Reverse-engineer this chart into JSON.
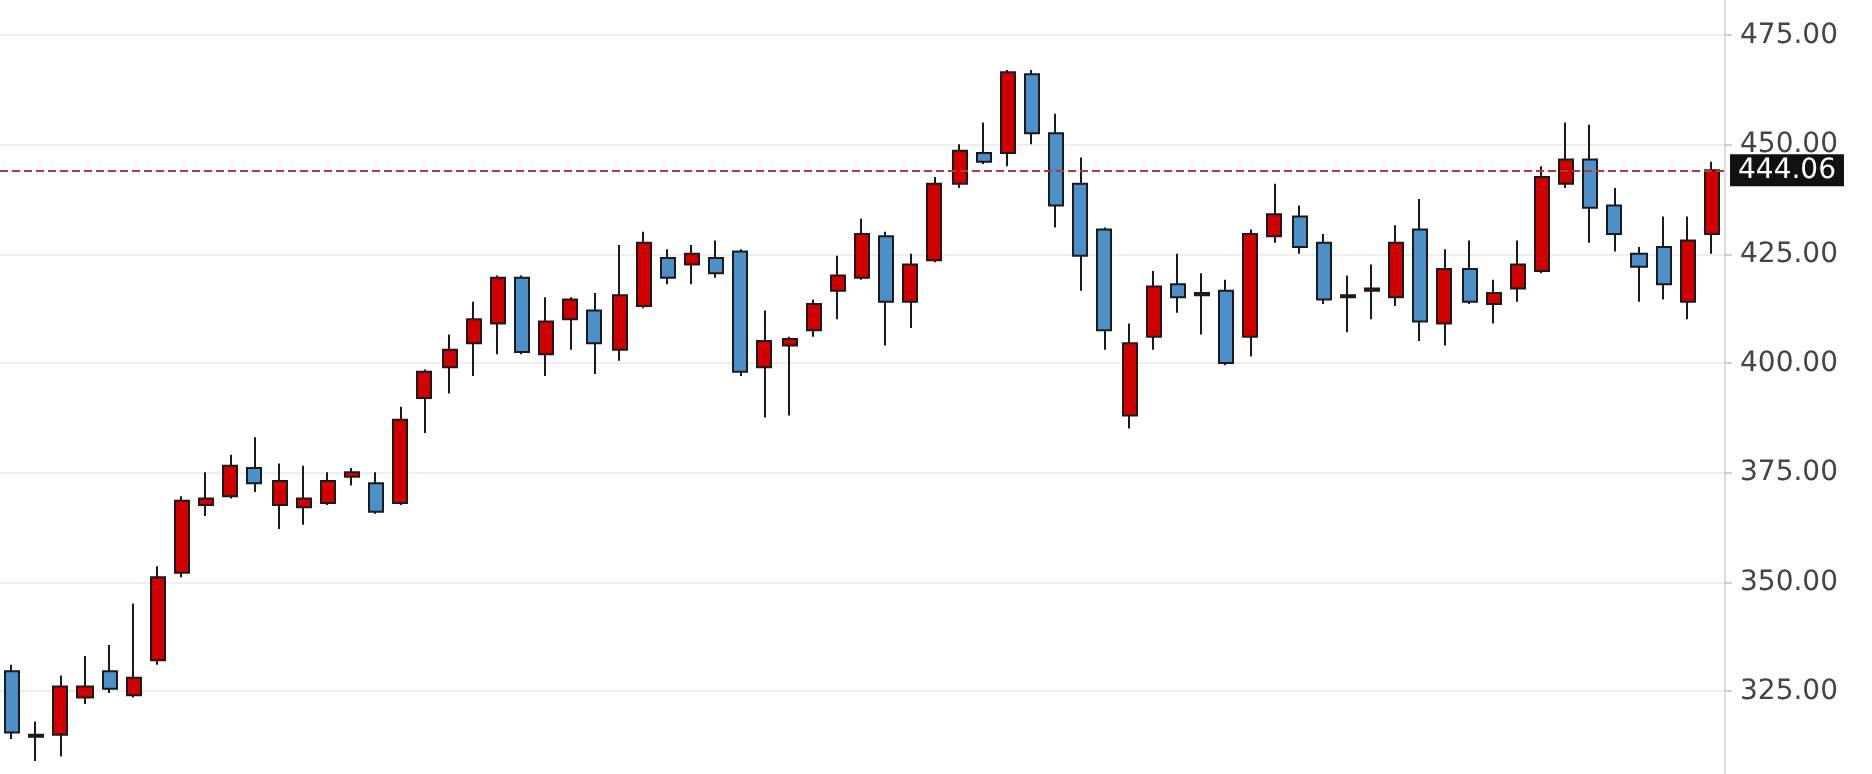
{
  "chart_data": {
    "type": "candlestick",
    "categories": [
      null,
      null,
      null,
      null,
      null,
      null,
      null,
      null,
      null,
      null,
      null,
      null,
      null,
      null,
      null,
      null,
      null,
      null,
      null,
      null,
      null,
      null,
      null,
      null,
      null,
      null,
      null,
      null,
      null,
      null,
      null,
      null,
      null,
      null,
      null,
      null,
      null,
      null,
      null,
      null,
      null,
      null,
      null,
      null,
      null,
      null,
      null,
      null,
      null,
      null,
      null,
      null,
      null,
      null,
      null,
      null,
      null,
      null,
      null,
      null,
      null,
      null,
      null,
      null,
      null,
      null,
      null,
      null,
      null,
      null,
      null
    ],
    "ohlc": [
      [
        329.5,
        331,
        314,
        315.5
      ],
      [
        314.5,
        318,
        309,
        315
      ],
      [
        315,
        328.5,
        310,
        326
      ],
      [
        323.5,
        333,
        322,
        326
      ],
      [
        329.5,
        335.5,
        324.5,
        325.5
      ],
      [
        324,
        345,
        323.5,
        328
      ],
      [
        332,
        353.5,
        331,
        351
      ],
      [
        352,
        369.5,
        351,
        368.5
      ],
      [
        367.5,
        375,
        365,
        369
      ],
      [
        369.5,
        379,
        369,
        376.5
      ],
      [
        376,
        383,
        370.5,
        372.5
      ],
      [
        367.5,
        377,
        362,
        373
      ],
      [
        367,
        376.5,
        363,
        369
      ],
      [
        368,
        375,
        367.5,
        373
      ],
      [
        374,
        376,
        372,
        375
      ],
      [
        372.5,
        375,
        365.5,
        366
      ],
      [
        368,
        390,
        367.5,
        387
      ],
      [
        392,
        398.5,
        384,
        398
      ],
      [
        399,
        406.5,
        393,
        403
      ],
      [
        404.5,
        414,
        397,
        410
      ],
      [
        409,
        420,
        402,
        419.5
      ],
      [
        419.5,
        420,
        402,
        402.5
      ],
      [
        402,
        415,
        397,
        409.5
      ],
      [
        410,
        415,
        403,
        414.5
      ],
      [
        412,
        416,
        397.5,
        404.5
      ],
      [
        403,
        427,
        400.5,
        415.5
      ],
      [
        413,
        430,
        412.5,
        427.5
      ],
      [
        424,
        426,
        418,
        419.5
      ],
      [
        422.5,
        427,
        418,
        425
      ],
      [
        424,
        428,
        419.5,
        420.5
      ],
      [
        425.5,
        426,
        397,
        398
      ],
      [
        399,
        412,
        387.5,
        405
      ],
      [
        404,
        406,
        388,
        405.5
      ],
      [
        407.5,
        414.5,
        406,
        413.5
      ],
      [
        416.5,
        424.5,
        410,
        420
      ],
      [
        419.5,
        433,
        419,
        429.5
      ],
      [
        429,
        430,
        404,
        414
      ],
      [
        414,
        425,
        408,
        422.5
      ],
      [
        423.5,
        442.5,
        423,
        441
      ],
      [
        441,
        450,
        440,
        448.5
      ],
      [
        448,
        455,
        445.5,
        446
      ],
      [
        448,
        467,
        445,
        466.5
      ],
      [
        466,
        467,
        450,
        452.5
      ],
      [
        452.5,
        457,
        431,
        436
      ],
      [
        441,
        447,
        416.5,
        424.5
      ],
      [
        430.5,
        431,
        403,
        407.5
      ],
      [
        388,
        409,
        385,
        404.5
      ],
      [
        406,
        421,
        403,
        417.5
      ],
      [
        418,
        425,
        411.5,
        415
      ],
      [
        415.5,
        420.5,
        406.5,
        416
      ],
      [
        416.5,
        419,
        399.5,
        400
      ],
      [
        406,
        430.5,
        401.5,
        429.5
      ],
      [
        429,
        441,
        427.5,
        434
      ],
      [
        433.5,
        436,
        425,
        426.5
      ],
      [
        427.5,
        429.5,
        413.5,
        414.5
      ],
      [
        415,
        420,
        407,
        415.5
      ],
      [
        416.5,
        422.5,
        410,
        417
      ],
      [
        415,
        431.5,
        413,
        427.5
      ],
      [
        430.5,
        437.5,
        405,
        409.5
      ],
      [
        409,
        426,
        404,
        421.5
      ],
      [
        421.5,
        428,
        413.5,
        414
      ],
      [
        413.5,
        419,
        409,
        416
      ],
      [
        417,
        428,
        414,
        422.5
      ],
      [
        421,
        445,
        420.5,
        442.5
      ],
      [
        441,
        455,
        440,
        446.5
      ],
      [
        446.5,
        454.5,
        427.5,
        435.5
      ],
      [
        436,
        440,
        425.5,
        429.5
      ],
      [
        425,
        426.5,
        414,
        422
      ],
      [
        426.5,
        433.5,
        414.5,
        418
      ],
      [
        414,
        433.5,
        410,
        428
      ],
      [
        429.5,
        446,
        425,
        444.06
      ]
    ],
    "colors": [
      "#4d8fc9",
      "#d00000",
      "#d00000",
      "#d00000",
      "#4d8fc9",
      "#d00000",
      "#d00000",
      "#d00000",
      "#d00000",
      "#d00000",
      "#4d8fc9",
      "#d00000",
      "#d00000",
      "#d00000",
      "#d00000",
      "#4d8fc9",
      "#d00000",
      "#d00000",
      "#d00000",
      "#d00000",
      "#d00000",
      "#4d8fc9",
      "#d00000",
      "#d00000",
      "#4d8fc9",
      "#d00000",
      "#d00000",
      "#4d8fc9",
      "#d00000",
      "#4d8fc9",
      "#4d8fc9",
      "#d00000",
      "#d00000",
      "#d00000",
      "#d00000",
      "#d00000",
      "#4d8fc9",
      "#d00000",
      "#d00000",
      "#d00000",
      "#4d8fc9",
      "#d00000",
      "#4d8fc9",
      "#4d8fc9",
      "#4d8fc9",
      "#4d8fc9",
      "#d00000",
      "#d00000",
      "#4d8fc9",
      "#d00000",
      "#4d8fc9",
      "#d00000",
      "#d00000",
      "#4d8fc9",
      "#4d8fc9",
      "#d00000",
      "#d00000",
      "#d00000",
      "#4d8fc9",
      "#d00000",
      "#4d8fc9",
      "#d00000",
      "#d00000",
      "#d00000",
      "#d00000",
      "#4d8fc9",
      "#4d8fc9",
      "#4d8fc9",
      "#4d8fc9",
      "#d00000",
      "#d00000"
    ],
    "ylim": [
      306,
      483
    ],
    "yticks": [
      {
        "value": 325,
        "label": "325.00"
      },
      {
        "value": 350,
        "label": "350.00"
      },
      {
        "value": 375,
        "label": "375.00"
      },
      {
        "value": 400,
        "label": "400.00"
      },
      {
        "value": 425,
        "label": "425.00"
      },
      {
        "value": 450,
        "label": "450.00"
      },
      {
        "value": 475,
        "label": "475.00"
      }
    ],
    "ref_lines": [
      {
        "axis": "y",
        "value": 444.06,
        "label": "444.06",
        "color": "#b03a3a",
        "line_style": "dashed"
      }
    ],
    "grid": "y",
    "tick_labels": "y"
  }
}
